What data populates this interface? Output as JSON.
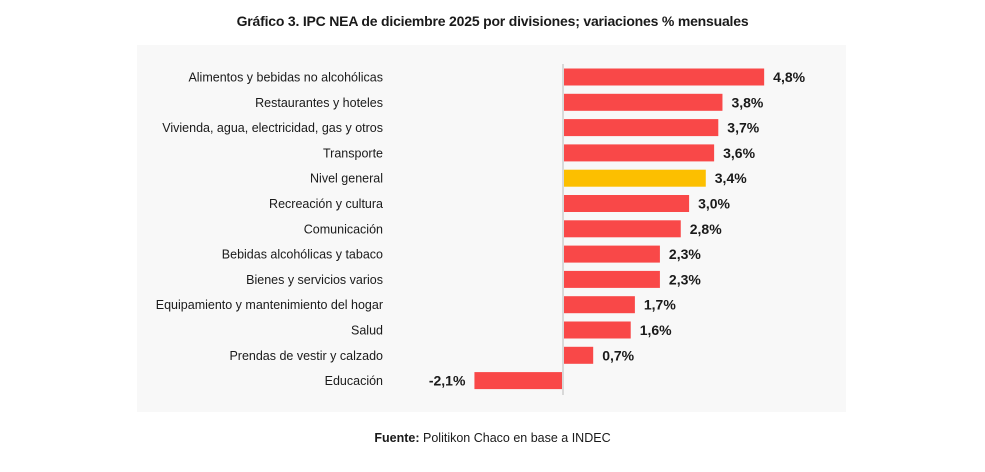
{
  "title": "Gráfico 3. IPC NEA de diciembre 2025 por divisiones; variaciones % mensuales",
  "source": {
    "label": "Fuente:",
    "text": "Politikon Chaco en base a INDEC"
  },
  "colors": {
    "bar": "#f94848",
    "highlight": "#fcbf00",
    "axis": "#d9d9d9",
    "panel": "#f8f8f8"
  },
  "chart_data": {
    "type": "bar",
    "orientation": "horizontal",
    "title": "Gráfico 3. IPC NEA de diciembre 2025 por divisiones; variaciones % mensuales",
    "xlabel": "",
    "ylabel": "",
    "unit": "%",
    "grid": false,
    "legend": "none",
    "highlight_category": "Nivel general",
    "categories": [
      "Alimentos y bebidas no alcohólicas",
      "Restaurantes y hoteles",
      "Vivienda, agua, electricidad, gas y otros",
      "Transporte",
      "Nivel general",
      "Recreación y cultura",
      "Comunicación",
      "Bebidas alcohólicas y tabaco",
      "Bienes y servicios varios",
      "Equipamiento y mantenimiento del hogar",
      "Salud",
      "Prendas de vestir y calzado",
      "Educación"
    ],
    "values": [
      4.8,
      3.8,
      3.7,
      3.6,
      3.4,
      3.0,
      2.8,
      2.3,
      2.3,
      1.7,
      1.6,
      0.7,
      -2.1
    ],
    "value_labels": [
      "4,8%",
      "3,8%",
      "3,7%",
      "3,6%",
      "3,4%",
      "3,0%",
      "2,8%",
      "2,3%",
      "2,3%",
      "1,7%",
      "1,6%",
      "0,7%",
      "-2,1%"
    ],
    "xlim": [
      -2.1,
      4.8
    ]
  }
}
